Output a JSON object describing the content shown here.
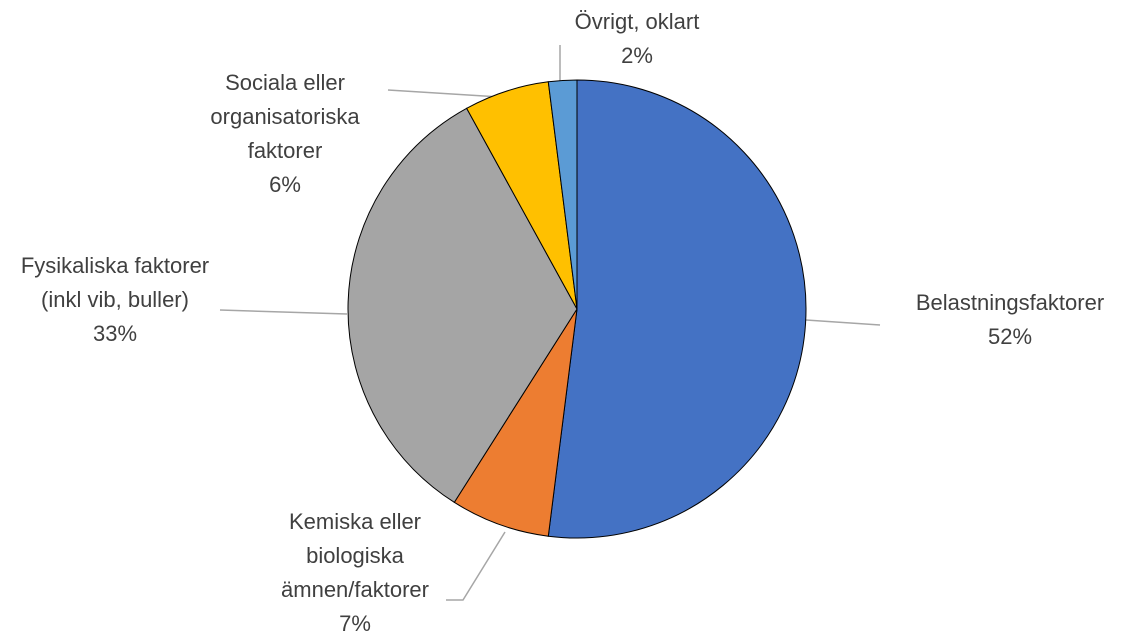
{
  "chart_data": {
    "type": "pie",
    "categories": [
      "Belastningsfaktorer",
      "Kemiska eller biologiska ämnen/faktorer",
      "Fysikaliska faktorer (inkl vib, buller)",
      "Sociala eller organisatoriska faktorer",
      "Övrigt, oklart"
    ],
    "values": [
      52,
      7,
      33,
      6,
      2
    ],
    "value_labels": [
      "52%",
      "7%",
      "33%",
      "6%",
      "2%"
    ],
    "colors": [
      "#4472c4",
      "#ed7d31",
      "#a5a5a5",
      "#ffc000",
      "#5b9bd5"
    ]
  }
}
